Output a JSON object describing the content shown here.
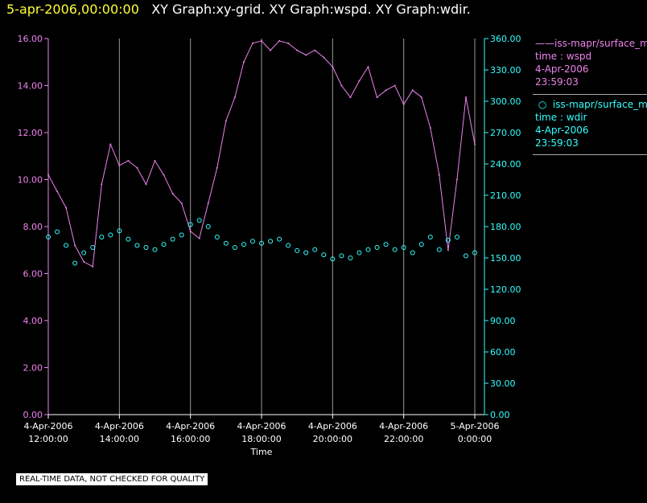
{
  "header": {
    "date": "5-apr-2006,00:00:00",
    "title": "XY Graph:xy-grid.  XY Graph:wspd.  XY Graph:wdir."
  },
  "chart_data": {
    "type": "line",
    "title": "",
    "xlabel": "Time",
    "x_ticks": [
      {
        "l1": "4-Apr-2006",
        "l2": "12:00:00"
      },
      {
        "l1": "4-Apr-2006",
        "l2": "14:00:00"
      },
      {
        "l1": "4-Apr-2006",
        "l2": "16:00:00"
      },
      {
        "l1": "4-Apr-2006",
        "l2": "18:00:00"
      },
      {
        "l1": "4-Apr-2006",
        "l2": "20:00:00"
      },
      {
        "l1": "4-Apr-2006",
        "l2": "22:00:00"
      },
      {
        "l1": "5-Apr-2006",
        "l2": "0:00:00"
      }
    ],
    "x_range_hours": [
      12,
      24
    ],
    "y_left": {
      "label": "",
      "range": [
        0,
        16
      ],
      "ticks": [
        "0.00",
        "2.00",
        "4.00",
        "6.00",
        "8.00",
        "10.00",
        "12.00",
        "14.00",
        "16.00"
      ],
      "color": "#ee82ee"
    },
    "y_right": {
      "label": "",
      "range": [
        0,
        360
      ],
      "ticks": [
        "0.00",
        "30.00",
        "60.00",
        "90.00",
        "120.00",
        "150.00",
        "180.00",
        "210.00",
        "240.00",
        "270.00",
        "300.00",
        "330.00",
        "360.00"
      ],
      "color": "#33ffff"
    },
    "grid": "vertical",
    "legend_position": "right",
    "series": [
      {
        "name": "iss-mapr/surface_met",
        "axis": "left",
        "style": "line",
        "color": "#ee82ee",
        "x": [
          12.0,
          12.25,
          12.5,
          12.75,
          13.0,
          13.25,
          13.5,
          13.75,
          14.0,
          14.25,
          14.5,
          14.75,
          15.0,
          15.25,
          15.5,
          15.75,
          16.0,
          16.25,
          16.5,
          16.75,
          17.0,
          17.25,
          17.5,
          17.75,
          18.0,
          18.25,
          18.5,
          18.75,
          19.0,
          19.25,
          19.5,
          19.75,
          20.0,
          20.25,
          20.5,
          20.75,
          21.0,
          21.25,
          21.5,
          21.75,
          22.0,
          22.25,
          22.5,
          22.75,
          23.0,
          23.25,
          23.5,
          23.75,
          24.0
        ],
        "values": [
          10.2,
          9.5,
          8.8,
          7.2,
          6.5,
          6.3,
          9.8,
          11.5,
          10.6,
          10.8,
          10.5,
          9.8,
          10.8,
          10.2,
          9.4,
          9.0,
          7.8,
          7.5,
          9.0,
          10.5,
          12.5,
          13.5,
          15.0,
          15.8,
          15.9,
          15.5,
          15.9,
          15.8,
          15.5,
          15.3,
          15.5,
          15.2,
          14.8,
          14.0,
          13.5,
          14.2,
          14.8,
          13.5,
          13.8,
          14.0,
          13.2,
          13.8,
          13.5,
          12.2,
          10.2,
          7.0,
          10.0,
          13.5,
          11.5
        ]
      },
      {
        "name": "iss-mapr/surface_met",
        "axis": "right",
        "style": "scatter",
        "color": "#33ffff",
        "x": [
          12.0,
          12.25,
          12.5,
          12.75,
          13.0,
          13.25,
          13.5,
          13.75,
          14.0,
          14.25,
          14.5,
          14.75,
          15.0,
          15.25,
          15.5,
          15.75,
          16.0,
          16.25,
          16.5,
          16.75,
          17.0,
          17.25,
          17.5,
          17.75,
          18.0,
          18.25,
          18.5,
          18.75,
          19.0,
          19.25,
          19.5,
          19.75,
          20.0,
          20.25,
          20.5,
          20.75,
          21.0,
          21.25,
          21.5,
          21.75,
          22.0,
          22.25,
          22.5,
          22.75,
          23.0,
          23.25,
          23.5,
          23.75,
          24.0
        ],
        "values": [
          170,
          175,
          162,
          145,
          155,
          160,
          170,
          172,
          176,
          168,
          162,
          160,
          158,
          163,
          168,
          172,
          182,
          186,
          180,
          170,
          164,
          160,
          163,
          166,
          164,
          166,
          168,
          162,
          157,
          155,
          158,
          153,
          149,
          152,
          150,
          155,
          158,
          160,
          163,
          158,
          160,
          155,
          163,
          170,
          158,
          167,
          170,
          152,
          155
        ]
      }
    ]
  },
  "legend": [
    {
      "line1": "iss-mapr/surface_met",
      "line2": "time : wspd",
      "line3": "4-Apr-2006",
      "line4": "23:59:03"
    },
    {
      "line1": "iss-mapr/surface_met",
      "line2": "time : wdir",
      "line3": "4-Apr-2006",
      "line4": "23:59:03"
    }
  ],
  "footer": {
    "qc_note": "REAL-TIME DATA, NOT CHECKED FOR QUALITY"
  }
}
